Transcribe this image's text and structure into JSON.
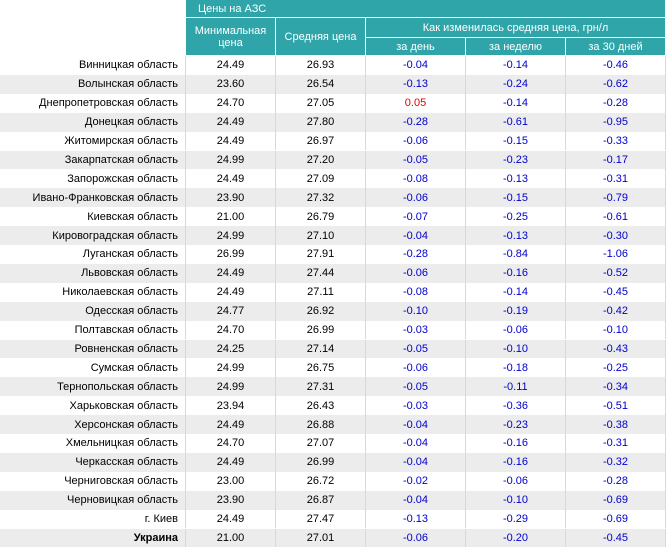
{
  "title": "Цены на АЗС",
  "headers": {
    "min": "Минимальная цена",
    "avg": "Средняя цена",
    "change": "Как изменилась средняя цена, грн/л",
    "day": "за день",
    "week": "за неделю",
    "month": "за 30 дней"
  },
  "rows": [
    [
      "Винницкая область",
      "24.49",
      "26.93",
      "-0.04",
      "-0.14",
      "-0.46"
    ],
    [
      "Волынская область",
      "23.60",
      "26.54",
      "-0.13",
      "-0.24",
      "-0.62"
    ],
    [
      "Днепропетровская область",
      "24.70",
      "27.05",
      "0.05",
      "-0.14",
      "-0.28"
    ],
    [
      "Донецкая область",
      "24.49",
      "27.80",
      "-0.28",
      "-0.61",
      "-0.95"
    ],
    [
      "Житомирская область",
      "24.49",
      "26.97",
      "-0.06",
      "-0.15",
      "-0.33"
    ],
    [
      "Закарпатская область",
      "24.99",
      "27.20",
      "-0.05",
      "-0.23",
      "-0.17"
    ],
    [
      "Запорожская область",
      "24.49",
      "27.09",
      "-0.08",
      "-0.13",
      "-0.31"
    ],
    [
      "Ивано-Франковская область",
      "23.90",
      "27.32",
      "-0.06",
      "-0.15",
      "-0.79"
    ],
    [
      "Киевская область",
      "21.00",
      "26.79",
      "-0.07",
      "-0.25",
      "-0.61"
    ],
    [
      "Кировоградская область",
      "24.99",
      "27.10",
      "-0.04",
      "-0.13",
      "-0.30"
    ],
    [
      "Луганская область",
      "26.99",
      "27.91",
      "-0.28",
      "-0.84",
      "-1.06"
    ],
    [
      "Львовская область",
      "24.49",
      "27.44",
      "-0.06",
      "-0.16",
      "-0.52"
    ],
    [
      "Николаевская область",
      "24.49",
      "27.11",
      "-0.08",
      "-0.14",
      "-0.45"
    ],
    [
      "Одесская область",
      "24.77",
      "26.92",
      "-0.10",
      "-0.19",
      "-0.42"
    ],
    [
      "Полтавская область",
      "24.70",
      "26.99",
      "-0.03",
      "-0.06",
      "-0.10"
    ],
    [
      "Ровненская область",
      "24.25",
      "27.14",
      "-0.05",
      "-0.10",
      "-0.43"
    ],
    [
      "Сумская область",
      "24.99",
      "26.75",
      "-0.06",
      "-0.18",
      "-0.25"
    ],
    [
      "Тернопольская область",
      "24.99",
      "27.31",
      "-0.05",
      "-0.11",
      "-0.34"
    ],
    [
      "Харьковская область",
      "23.94",
      "26.43",
      "-0.03",
      "-0.36",
      "-0.51"
    ],
    [
      "Херсонская область",
      "24.49",
      "26.88",
      "-0.04",
      "-0.23",
      "-0.38"
    ],
    [
      "Хмельницкая область",
      "24.70",
      "27.07",
      "-0.04",
      "-0.16",
      "-0.31"
    ],
    [
      "Черкасская область",
      "24.49",
      "26.99",
      "-0.04",
      "-0.16",
      "-0.32"
    ],
    [
      "Черниговская область",
      "23.00",
      "26.72",
      "-0.02",
      "-0.06",
      "-0.28"
    ],
    [
      "Черновицкая область",
      "23.90",
      "26.87",
      "-0.04",
      "-0.10",
      "-0.69"
    ],
    [
      "г. Киев",
      "24.49",
      "27.47",
      "-0.13",
      "-0.29",
      "-0.69"
    ],
    [
      "Украина",
      "21.00",
      "27.01",
      "-0.06",
      "-0.20",
      "-0.45"
    ]
  ]
}
